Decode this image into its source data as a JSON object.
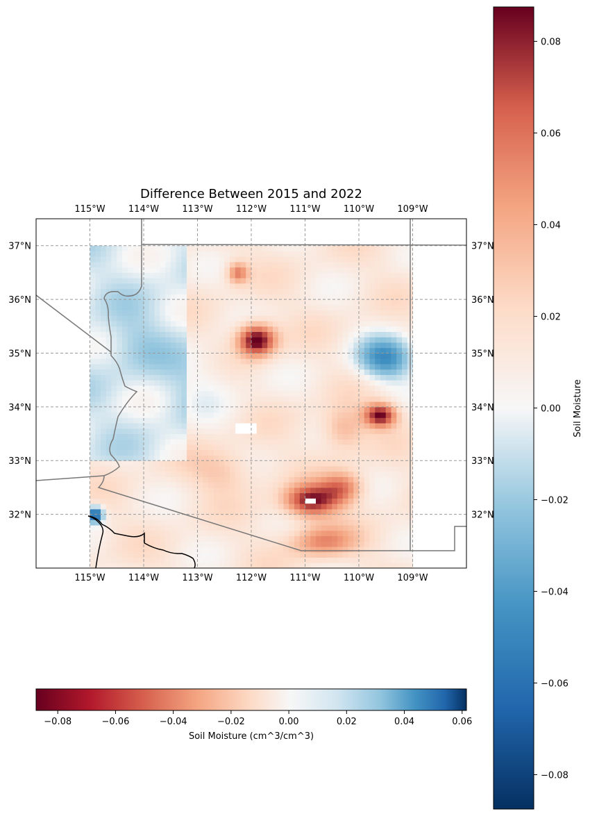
{
  "title": "Difference Between 2015 and 2022",
  "map": {
    "lon_ticks": [
      "115°W",
      "114°W",
      "113°W",
      "112°W",
      "111°W",
      "110°W",
      "109°W"
    ],
    "lat_ticks": [
      "37°N",
      "36°N",
      "35°N",
      "34°N",
      "33°N",
      "32°N"
    ],
    "lon_values": [
      -115,
      -114,
      -113,
      -112,
      -111,
      -110,
      -109
    ],
    "lat_values": [
      37,
      36,
      35,
      34,
      33,
      32
    ],
    "extent": {
      "lon_min": -116,
      "lon_max": -108,
      "lat_min": 31,
      "lat_max": 37.5
    },
    "data_extent": {
      "lon_min": -115,
      "lon_max": -109,
      "lat_min": 31,
      "lat_max": 37
    },
    "gridlines": true,
    "hotspots": [
      {
        "lon": -111.9,
        "lat": 35.25,
        "value": 0.085,
        "rlon": 0.35,
        "rlat": 0.3
      },
      {
        "lon": -112.25,
        "lat": 36.5,
        "value": 0.045,
        "rlon": 0.2,
        "rlat": 0.2
      },
      {
        "lon": -109.5,
        "lat": 34.9,
        "value": -0.055,
        "rlon": 0.55,
        "rlat": 0.4
      },
      {
        "lon": -109.6,
        "lat": 33.85,
        "value": 0.075,
        "rlon": 0.3,
        "rlat": 0.22
      },
      {
        "lon": -110.9,
        "lat": 32.25,
        "value": 0.07,
        "rlon": 0.5,
        "rlat": 0.3
      },
      {
        "lon": -110.3,
        "lat": 32.5,
        "value": 0.045,
        "rlon": 0.4,
        "rlat": 0.3
      },
      {
        "lon": -110.7,
        "lat": 31.5,
        "value": 0.04,
        "rlon": 0.6,
        "rlat": 0.3
      },
      {
        "lon": -110.3,
        "lat": 33.6,
        "value": 0.03,
        "rlon": 0.4,
        "rlat": 0.4
      },
      {
        "lon": -112.8,
        "lat": 34.5,
        "value": -0.012,
        "rlon": 0.7,
        "rlat": 0.6
      },
      {
        "lon": -114.2,
        "lat": 35.2,
        "value": -0.012,
        "rlon": 0.6,
        "rlat": 0.6
      },
      {
        "lon": -114.9,
        "lat": 32.0,
        "value": -0.08,
        "rlon": 0.15,
        "rlat": 0.15
      },
      {
        "lon": -112.5,
        "lat": 32.8,
        "value": 0.02,
        "rlon": 0.6,
        "rlat": 0.4
      }
    ]
  },
  "colorbar_right": {
    "label": "Soil Moisture",
    "ticks": [
      "0.08",
      "0.06",
      "0.04",
      "0.02",
      "0.00",
      "−0.02",
      "−0.04",
      "−0.06",
      "−0.08"
    ],
    "tick_values": [
      0.08,
      0.06,
      0.04,
      0.02,
      0.0,
      -0.02,
      -0.04,
      -0.06,
      -0.08
    ],
    "range": [
      -0.0875,
      0.0875
    ],
    "colormap": "RdBu_r"
  },
  "colorbar_bottom": {
    "label": "Soil Moisture (cm^3/cm^3)",
    "ticks": [
      "−0.08",
      "−0.06",
      "−0.04",
      "−0.02",
      "0.00",
      "0.02",
      "0.04",
      "0.06"
    ],
    "tick_values": [
      -0.08,
      -0.06,
      -0.04,
      -0.02,
      0.0,
      0.02,
      0.04,
      0.06
    ],
    "range": [
      -0.0875,
      0.0615
    ],
    "colormap": "RdBu"
  }
}
